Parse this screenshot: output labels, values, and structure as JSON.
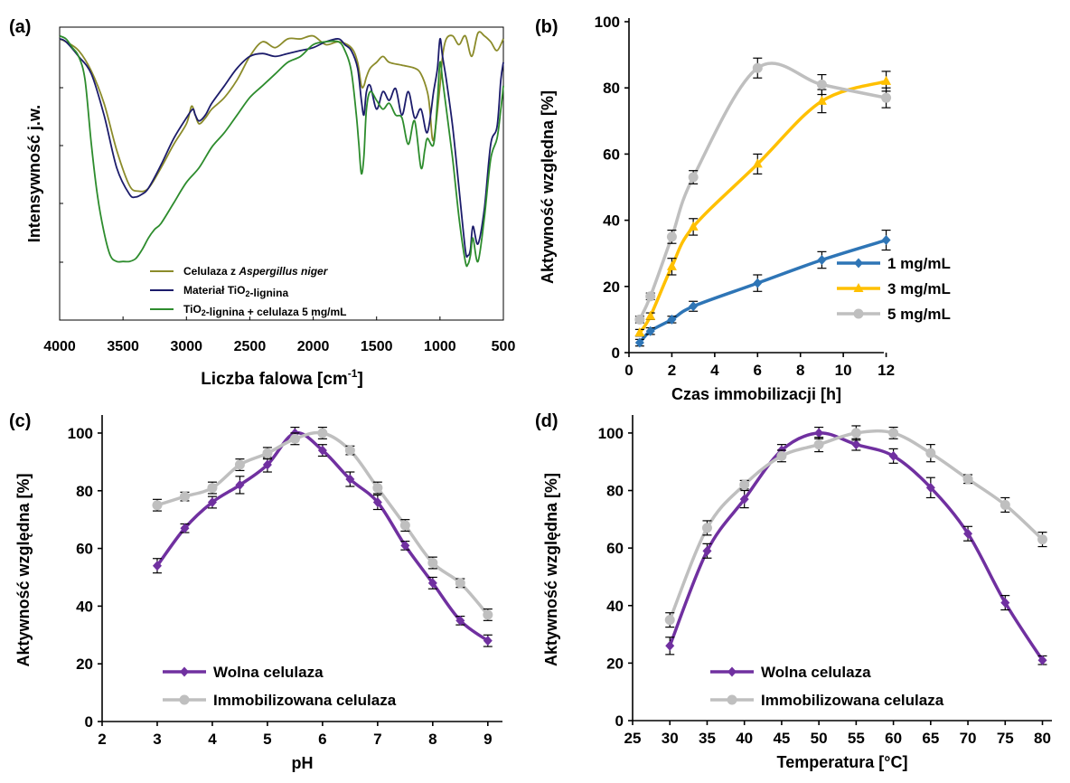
{
  "chart_data": [
    {
      "panel": "(a)",
      "type": "line",
      "xlabel": "Liczba falowa [cm-1]",
      "ylabel": "Intensywność j.w.",
      "xlim": [
        4000,
        500
      ],
      "xticks": [
        "4000",
        "3500",
        "3000",
        "2500",
        "2000",
        "1500",
        "1000",
        "500"
      ],
      "grid": false,
      "legend_position": "bottom-center",
      "series": [
        {
          "name": "Celulaza z Aspergillus niger",
          "color": "#8b8b2a",
          "x": [
            4000,
            3950,
            3850,
            3750,
            3650,
            3550,
            3450,
            3380,
            3300,
            3200,
            3100,
            3000,
            2960,
            2930,
            2900,
            2850,
            2800,
            2700,
            2600,
            2500,
            2400,
            2300,
            2200,
            2100,
            2000,
            1900,
            1800,
            1700,
            1650,
            1620,
            1600,
            1580,
            1550,
            1500,
            1450,
            1400,
            1300,
            1200,
            1150,
            1100,
            1080,
            1060,
            1040,
            1000,
            980,
            950,
            900,
            850,
            800,
            750,
            700,
            650,
            600,
            550,
            500
          ],
          "y": [
            0.96,
            0.95,
            0.92,
            0.85,
            0.74,
            0.58,
            0.46,
            0.44,
            0.45,
            0.52,
            0.6,
            0.67,
            0.73,
            0.7,
            0.67,
            0.69,
            0.72,
            0.76,
            0.82,
            0.9,
            0.95,
            0.93,
            0.96,
            0.96,
            0.97,
            0.94,
            0.95,
            0.93,
            0.88,
            0.8,
            0.8,
            0.83,
            0.86,
            0.88,
            0.9,
            0.88,
            0.87,
            0.86,
            0.84,
            0.78,
            0.72,
            0.62,
            0.64,
            0.8,
            0.9,
            0.96,
            0.97,
            0.94,
            0.97,
            0.9,
            0.98,
            0.97,
            0.95,
            0.92,
            0.96
          ]
        },
        {
          "name": "Materiał TiO2-lignina",
          "color": "#1c1c6b",
          "x": [
            4000,
            3950,
            3850,
            3750,
            3650,
            3550,
            3450,
            3400,
            3350,
            3300,
            3200,
            3100,
            3000,
            2950,
            2930,
            2900,
            2850,
            2800,
            2700,
            2600,
            2500,
            2400,
            2300,
            2200,
            2100,
            2000,
            1900,
            1800,
            1750,
            1700,
            1650,
            1620,
            1600,
            1580,
            1550,
            1500,
            1450,
            1400,
            1350,
            1300,
            1250,
            1200,
            1150,
            1100,
            1050,
            1020,
            1000,
            980,
            950,
            900,
            850,
            800,
            780,
            760,
            740,
            700,
            650,
            600,
            550,
            520,
            500
          ],
          "y": [
            0.96,
            0.95,
            0.9,
            0.84,
            0.7,
            0.52,
            0.43,
            0.42,
            0.43,
            0.45,
            0.53,
            0.62,
            0.69,
            0.72,
            0.7,
            0.68,
            0.7,
            0.74,
            0.8,
            0.86,
            0.9,
            0.91,
            0.9,
            0.91,
            0.92,
            0.93,
            0.95,
            0.96,
            0.94,
            0.92,
            0.86,
            0.75,
            0.7,
            0.78,
            0.8,
            0.72,
            0.78,
            0.75,
            0.79,
            0.7,
            0.78,
            0.69,
            0.72,
            0.64,
            0.78,
            0.86,
            0.96,
            0.9,
            0.82,
            0.66,
            0.45,
            0.24,
            0.22,
            0.24,
            0.32,
            0.26,
            0.38,
            0.6,
            0.66,
            0.82,
            0.88
          ]
        },
        {
          "name": "TiO2-lignina + celulaza 5 mg/mL",
          "color": "#2d8c2d",
          "x": [
            4000,
            3950,
            3900,
            3850,
            3800,
            3750,
            3700,
            3650,
            3600,
            3550,
            3500,
            3450,
            3400,
            3350,
            3300,
            3250,
            3200,
            3100,
            3000,
            2900,
            2800,
            2700,
            2600,
            2500,
            2400,
            2300,
            2200,
            2100,
            2000,
            1900,
            1800,
            1750,
            1700,
            1660,
            1640,
            1620,
            1600,
            1580,
            1550,
            1500,
            1450,
            1400,
            1350,
            1300,
            1250,
            1200,
            1150,
            1120,
            1100,
            1050,
            1020,
            1000,
            980,
            950,
            900,
            850,
            800,
            780,
            760,
            740,
            700,
            650,
            600,
            550,
            520,
            500
          ],
          "y": [
            0.97,
            0.96,
            0.93,
            0.9,
            0.82,
            0.6,
            0.42,
            0.3,
            0.22,
            0.2,
            0.2,
            0.2,
            0.21,
            0.24,
            0.28,
            0.31,
            0.33,
            0.4,
            0.47,
            0.52,
            0.59,
            0.64,
            0.7,
            0.76,
            0.8,
            0.84,
            0.88,
            0.9,
            0.94,
            0.95,
            0.95,
            0.92,
            0.85,
            0.7,
            0.6,
            0.5,
            0.56,
            0.72,
            0.78,
            0.75,
            0.72,
            0.74,
            0.7,
            0.69,
            0.6,
            0.68,
            0.52,
            0.58,
            0.62,
            0.6,
            0.75,
            0.88,
            0.82,
            0.72,
            0.55,
            0.35,
            0.2,
            0.19,
            0.22,
            0.28,
            0.2,
            0.35,
            0.55,
            0.62,
            0.72,
            0.8
          ]
        }
      ]
    },
    {
      "panel": "(b)",
      "type": "line",
      "xlabel": "Czas immobilizacji [h]",
      "ylabel": "Aktywność względna [%]",
      "xlim": [
        0,
        14
      ],
      "ylim": [
        0,
        100
      ],
      "xticks": [
        "0",
        "2",
        "4",
        "6",
        "8",
        "10",
        "12"
      ],
      "yticks": [
        "0",
        "20",
        "40",
        "60",
        "80",
        "100"
      ],
      "grid": false,
      "legend_position": "bottom-right",
      "x": [
        0.5,
        1,
        2,
        3,
        6,
        9,
        12
      ],
      "series": [
        {
          "name": "1 mg/mL",
          "color": "#2e75b6",
          "marker": "diamond",
          "values": [
            3,
            6.5,
            10,
            14,
            21,
            28,
            34
          ],
          "errors": [
            1,
            1,
            1,
            1.5,
            2.5,
            2.5,
            3
          ]
        },
        {
          "name": "3 mg/mL",
          "color": "#ffc000",
          "marker": "triangle",
          "values": [
            6,
            11,
            26,
            38,
            57,
            76,
            82
          ],
          "errors": [
            1,
            1,
            2.5,
            2.5,
            3,
            3.5,
            3
          ]
        },
        {
          "name": "5 mg/mL",
          "color": "#bfbfbf",
          "marker": "circle",
          "values": [
            10,
            17,
            35,
            53,
            86,
            81,
            77
          ],
          "errors": [
            1,
            1,
            2,
            2,
            3,
            3,
            3
          ]
        }
      ]
    },
    {
      "panel": "(c)",
      "type": "line",
      "xlabel": "pH",
      "ylabel": "Aktywność względna [%]",
      "xlim": [
        2,
        9.2
      ],
      "ylim": [
        0,
        105
      ],
      "xticks": [
        "2",
        "3",
        "4",
        "5",
        "6",
        "7",
        "8",
        "9"
      ],
      "yticks": [
        "0",
        "20",
        "40",
        "60",
        "80",
        "100"
      ],
      "grid": false,
      "legend_position": "bottom-left",
      "x": [
        3,
        3.5,
        4,
        4.5,
        5,
        5.5,
        6,
        6.5,
        7,
        7.5,
        8,
        8.5,
        9
      ],
      "series": [
        {
          "name": "Wolna celulaza",
          "color": "#7030a0",
          "marker": "diamond",
          "values": [
            54,
            67,
            76,
            82,
            89,
            100,
            94,
            84,
            76,
            61,
            48,
            35,
            28
          ],
          "errors": [
            2.5,
            1.5,
            2,
            3,
            2.5,
            2,
            2,
            2.5,
            2.5,
            1.5,
            2,
            1.5,
            2
          ]
        },
        {
          "name": "Immobilizowana celulaza",
          "color": "#bfbfbf",
          "marker": "circle",
          "values": [
            75,
            78,
            81,
            89,
            93,
            98,
            100,
            94,
            81,
            68,
            55,
            48,
            37
          ],
          "errors": [
            2,
            1.5,
            2,
            2,
            2,
            2,
            2,
            1.5,
            2,
            2,
            2,
            1.5,
            2
          ]
        }
      ]
    },
    {
      "panel": "(d)",
      "type": "line",
      "xlabel": "Temperatura [°C]",
      "ylabel": "Aktywność względna [%]",
      "xlim": [
        25,
        82
      ],
      "ylim": [
        0,
        105
      ],
      "xticks": [
        "25",
        "30",
        "35",
        "40",
        "45",
        "50",
        "55",
        "60",
        "65",
        "70",
        "75",
        "80"
      ],
      "yticks": [
        "0",
        "20",
        "40",
        "60",
        "80",
        "100"
      ],
      "grid": false,
      "legend_position": "bottom-center",
      "x": [
        30,
        35,
        40,
        45,
        50,
        55,
        60,
        65,
        70,
        75,
        80
      ],
      "series": [
        {
          "name": "Wolna celulaza",
          "color": "#7030a0",
          "marker": "diamond",
          "values": [
            26,
            59,
            77,
            94,
            100,
            96,
            92,
            81,
            65,
            41,
            21
          ],
          "errors": [
            3,
            2.5,
            3,
            2,
            2,
            2,
            2.5,
            3.5,
            2.5,
            2.5,
            1.5
          ]
        },
        {
          "name": "Immobilizowana celulaza",
          "color": "#bfbfbf",
          "marker": "circle",
          "values": [
            35,
            67,
            82,
            92,
            96,
            100,
            100,
            93,
            84,
            75,
            63
          ],
          "errors": [
            2.5,
            2.5,
            1.5,
            2,
            2.5,
            2.5,
            2,
            3,
            1.5,
            2.5,
            2.5
          ]
        }
      ]
    }
  ]
}
